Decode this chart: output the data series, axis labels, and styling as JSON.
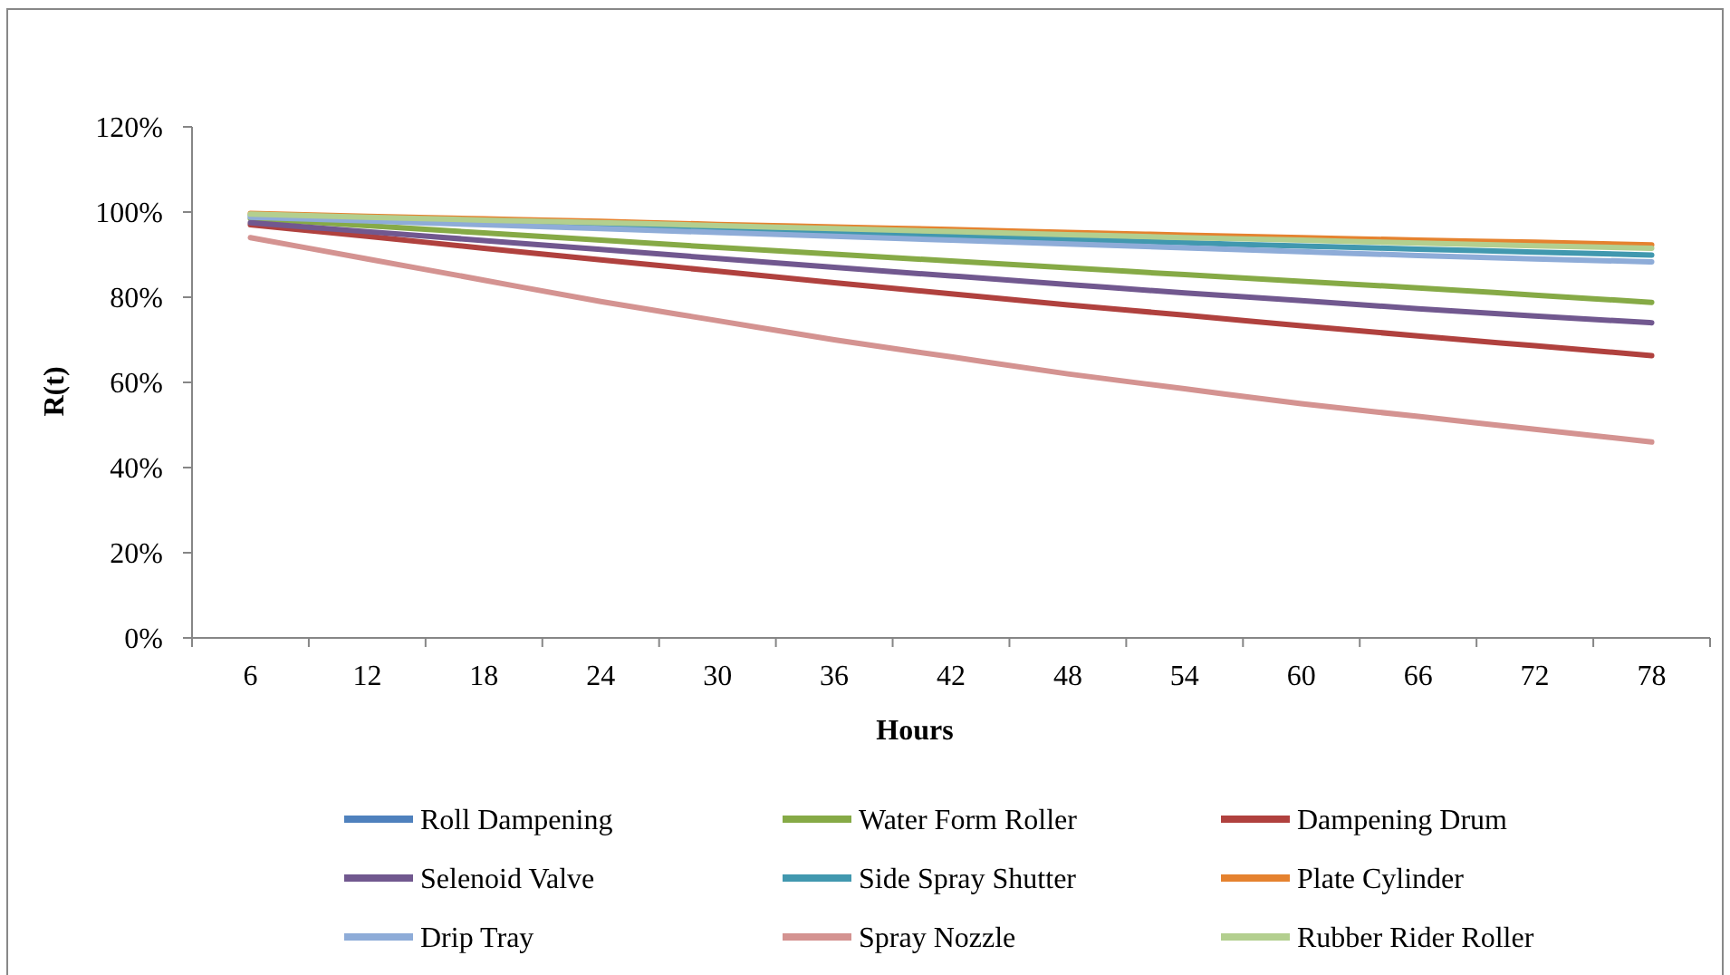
{
  "chart_data": {
    "type": "line",
    "xlabel": "Hours",
    "ylabel": "R(t)",
    "categories": [
      "6",
      "12",
      "18",
      "24",
      "30",
      "36",
      "42",
      "48",
      "54",
      "60",
      "66",
      "72",
      "78"
    ],
    "ylim": [
      0,
      120
    ],
    "yticks": [
      {
        "value": 0,
        "label": "0%"
      },
      {
        "value": 20,
        "label": "20%"
      },
      {
        "value": 40,
        "label": "40%"
      },
      {
        "value": 60,
        "label": "60%"
      },
      {
        "value": 80,
        "label": "80%"
      },
      {
        "value": 100,
        "label": "100%"
      },
      {
        "value": 120,
        "label": "120%"
      }
    ],
    "grid": false,
    "legend": "bottom",
    "marker": "none",
    "line_style": "solid",
    "series": [
      {
        "name": "Roll Dampening",
        "color": "#4f81bd",
        "values": [
          null,
          null,
          null,
          null,
          null,
          null,
          null,
          null,
          null,
          null,
          null,
          null,
          null
        ]
      },
      {
        "name": "Water Form Roller",
        "color": "#86aa46",
        "values": [
          98.5,
          96.8,
          95.1,
          93.4,
          91.7,
          90.1,
          88.5,
          86.9,
          85.3,
          83.7,
          82.2,
          80.5,
          78.8
        ]
      },
      {
        "name": "Dampening Drum",
        "color": "#b0413e",
        "values": [
          97,
          94.3,
          91.5,
          88.8,
          86.1,
          83.4,
          80.8,
          78.2,
          75.8,
          73.3,
          70.9,
          68.6,
          66.3
        ]
      },
      {
        "name": "Selenoid Valve",
        "color": "#71588f",
        "values": [
          97.5,
          95.4,
          93.3,
          91.2,
          89.1,
          87,
          85,
          83,
          81,
          79.2,
          77.3,
          75.6,
          74
        ]
      },
      {
        "name": "Side Spray Shutter",
        "color": "#4198af",
        "values": [
          99.2,
          98.4,
          97.6,
          96.8,
          96,
          95.2,
          94.4,
          93.6,
          92.8,
          92,
          91.3,
          90.6,
          89.9
        ]
      },
      {
        "name": "Plate Cylinder",
        "color": "#e5822f",
        "values": [
          99.7,
          99,
          98.4,
          97.8,
          97.1,
          96.5,
          95.9,
          95.2,
          94.6,
          94,
          93.4,
          92.9,
          92.3
        ]
      },
      {
        "name": "Drip Tray",
        "color": "#8eacd8",
        "values": [
          98.8,
          97.9,
          97,
          96.1,
          95.2,
          94.3,
          93.4,
          92.5,
          91.6,
          90.7,
          89.8,
          89,
          88.3
        ]
      },
      {
        "name": "Spray Nozzle",
        "color": "#d49391",
        "values": [
          94,
          89,
          84,
          79,
          74.5,
          70,
          66,
          62,
          58.5,
          55,
          52,
          49,
          46
        ]
      },
      {
        "name": "Rubber Rider Roller",
        "color": "#b3cf8f",
        "values": [
          99.5,
          98.8,
          98.1,
          97.5,
          96.8,
          96.1,
          95.4,
          94.7,
          94,
          93.4,
          92.7,
          92.1,
          91.5
        ]
      }
    ]
  }
}
